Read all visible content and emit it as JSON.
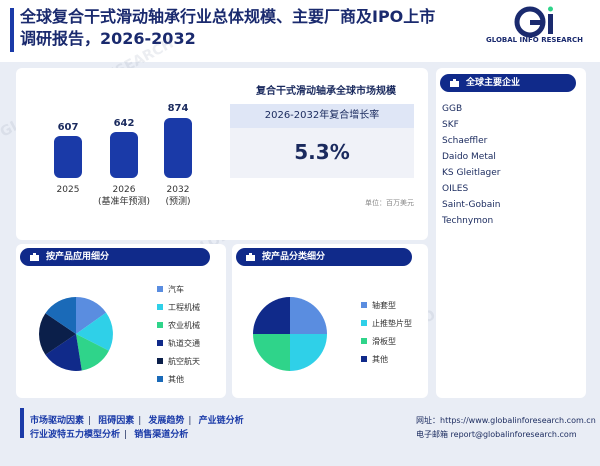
{
  "header": {
    "title": "全球复合干式滑动轴承行业总体规模、主要厂商及IPO上市调研报告，2026-2032",
    "logo_text": "GLOBAL INFO RESEARCH"
  },
  "market_size": {
    "title": "复合干式滑动轴承全球市场规模",
    "cagr_label": "2026-2032年复合增长率",
    "cagr_value": "5.3%",
    "unit": "单位：百万美元",
    "bars": [
      {
        "value": "607",
        "num": 607,
        "label_line1": "2025",
        "label_line2": ""
      },
      {
        "value": "642",
        "num": 642,
        "label_line1": "2026",
        "label_line2": "(基准年预测)"
      },
      {
        "value": "874",
        "num": 874,
        "label_line1": "2032",
        "label_line2": "(预测)"
      }
    ]
  },
  "companies": {
    "header": "全球主要企业",
    "items": [
      "GGB",
      "SKF",
      "Schaeffler",
      "Daido Metal",
      "KS Gleitlager",
      "OILES",
      "Saint-Gobain",
      "Technymon"
    ]
  },
  "by_application": {
    "header": "按产品应用细分",
    "items": [
      {
        "label": "汽车",
        "color": "#5a8de0"
      },
      {
        "label": "工程机械",
        "color": "#2fd0e8"
      },
      {
        "label": "农业机械",
        "color": "#2fd48a"
      },
      {
        "label": "轨道交通",
        "color": "#102a8a"
      },
      {
        "label": "航空航天",
        "color": "#0b1f4a"
      },
      {
        "label": "其他",
        "color": "#1a6ab8"
      }
    ]
  },
  "by_type": {
    "header": "按产品分类细分",
    "items": [
      {
        "label": "轴套型",
        "color": "#5a8de0"
      },
      {
        "label": "止推垫片型",
        "color": "#2fd0e8"
      },
      {
        "label": "滑板型",
        "color": "#2fd48a"
      },
      {
        "label": "其他",
        "color": "#102a8a"
      }
    ]
  },
  "footer": {
    "link1": "市场驱动因素",
    "link2": "阻碍因素",
    "link3": "发展趋势",
    "link4": "产业链分析",
    "link5": "行业波特五力模型分析",
    "link6": "销售渠道分析",
    "website": "网址：https://www.globalinforesearch.com.cn",
    "email": "电子邮箱 report@globalinforesearch.com"
  }
}
